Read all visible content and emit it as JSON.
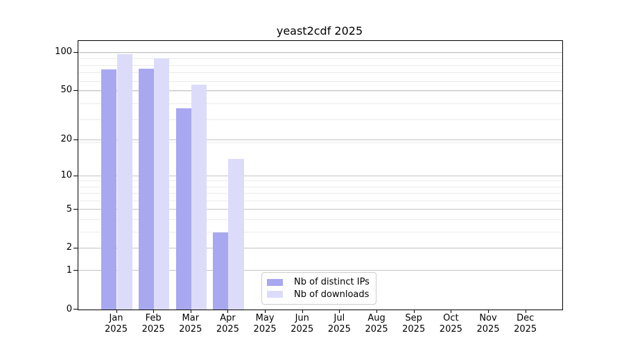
{
  "chart_data": {
    "type": "bar",
    "title": "yeast2cdf 2025",
    "categories": [
      "Jan",
      "Feb",
      "Mar",
      "Apr",
      "May",
      "Jun",
      "Jul",
      "Aug",
      "Sep",
      "Oct",
      "Nov",
      "Dec"
    ],
    "category_year": "2025",
    "series": [
      {
        "name": "Nb of distinct IPs",
        "color": "#a8a8f0",
        "values": [
          74,
          75,
          36,
          3,
          0,
          0,
          0,
          0,
          0,
          0,
          0,
          0
        ]
      },
      {
        "name": "Nb of downloads",
        "color": "#dcdcfa",
        "values": [
          97,
          90,
          56,
          14,
          0,
          0,
          0,
          0,
          0,
          0,
          0,
          0
        ]
      }
    ],
    "y_scale": "log1p",
    "y_ticks": [
      0,
      1,
      2,
      5,
      10,
      20,
      50,
      100
    ],
    "ylim": [
      0,
      124
    ],
    "xlabel": "",
    "ylabel": "",
    "grid": {
      "enabled": true,
      "major_color": "#c4c4c4",
      "minor_color": "#ebebeb",
      "minor_gridlines_u": [
        2,
        3,
        4,
        5,
        6,
        7,
        8,
        9,
        10,
        20,
        30,
        40,
        50,
        60,
        70,
        80,
        90,
        100
      ]
    },
    "legend": {
      "position": "lower-center"
    }
  }
}
